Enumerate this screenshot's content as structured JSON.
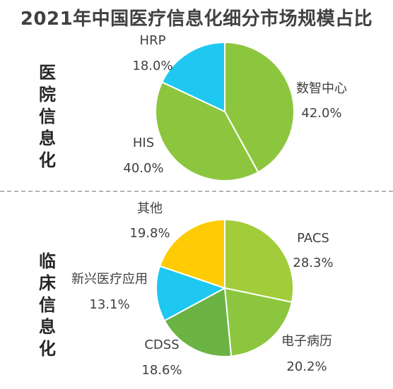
{
  "title": "2021年中国医疗信息化细分市场规模占比",
  "chart_data": [
    {
      "type": "pie",
      "title": "医院信息化",
      "slices": [
        {
          "name": "数智中心",
          "value": 42.0,
          "label": "42.0%",
          "color": "#8cc63f"
        },
        {
          "name": "HIS",
          "value": 40.0,
          "label": "40.0%",
          "color": "#8cc63f"
        },
        {
          "name": "HRP",
          "value": 18.0,
          "label": "18.0%",
          "color": "#1ec8f0"
        }
      ]
    },
    {
      "type": "pie",
      "title": "临床信息化",
      "slices": [
        {
          "name": "PACS",
          "value": 28.3,
          "label": "28.3%",
          "color": "#a3cc3a"
        },
        {
          "name": "电子病历",
          "value": 20.2,
          "label": "20.2%",
          "color": "#8cc63f"
        },
        {
          "name": "CDSS",
          "value": 18.6,
          "label": "18.6%",
          "color": "#6ab344"
        },
        {
          "name": "新兴医疗应用",
          "value": 13.1,
          "label": "13.1%",
          "color": "#1ec8f0"
        },
        {
          "name": "其他",
          "value": 19.8,
          "label": "19.8%",
          "color": "#ffcb05"
        }
      ]
    }
  ]
}
